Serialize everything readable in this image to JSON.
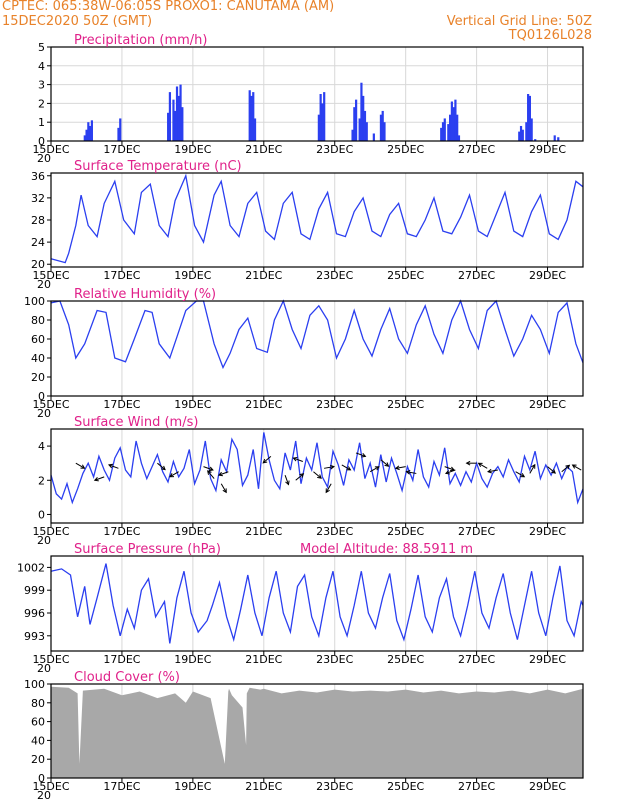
{
  "header": {
    "line1": "CPTEC:   065:38W-06:05S   PROXO1: CANUTAMA (AM)",
    "line2": "15DEC2020 50Z (GMT)",
    "grid_note": "Vertical Grid Line: 50Z",
    "code": "TQ0126L028"
  },
  "colors": {
    "header": "#e8822a",
    "title": "#e0218a",
    "series": "#2b3ff0",
    "cloud": "#a8a8a8"
  },
  "x_tick_labels": [
    "15DEC",
    "17DEC",
    "19DEC",
    "21DEC",
    "23DEC",
    "25DEC",
    "27DEC",
    "29DEC"
  ],
  "x_tick_days": [
    0,
    2,
    4,
    6,
    8,
    10,
    12,
    14
  ],
  "x_stub": "20",
  "chart_data": [
    {
      "id": "precip",
      "type": "bar",
      "title": "Precipitation (mm/h)",
      "xlim": [
        0,
        15
      ],
      "ylim": [
        0,
        5
      ],
      "yticks": [
        0,
        1,
        2,
        3,
        4,
        5
      ],
      "grid": true,
      "x": [
        0.95,
        1.0,
        1.05,
        1.1,
        1.15,
        1.9,
        1.95,
        3.3,
        3.35,
        3.45,
        3.5,
        3.55,
        3.6,
        3.65,
        3.7,
        5.6,
        5.65,
        5.7,
        5.75,
        7.55,
        7.6,
        7.65,
        7.7,
        8.5,
        8.55,
        8.6,
        8.7,
        8.75,
        8.8,
        8.85,
        8.9,
        9.1,
        9.3,
        9.35,
        9.4,
        11.0,
        11.05,
        11.1,
        11.2,
        11.25,
        11.3,
        11.35,
        11.4,
        11.45,
        11.5,
        13.2,
        13.25,
        13.3,
        13.4,
        13.45,
        13.5,
        13.55,
        13.65,
        14.2,
        14.3
      ],
      "values": [
        0.3,
        0.6,
        1.0,
        0.8,
        1.1,
        0.7,
        1.2,
        1.5,
        2.6,
        2.2,
        1.6,
        2.9,
        2.4,
        3.0,
        1.8,
        2.7,
        2.4,
        2.6,
        1.2,
        1.4,
        2.5,
        2.0,
        2.6,
        0.6,
        1.8,
        2.2,
        1.2,
        3.1,
        2.4,
        1.6,
        1.0,
        0.4,
        1.4,
        1.6,
        1.0,
        0.7,
        1.0,
        1.2,
        0.9,
        1.4,
        2.1,
        1.8,
        2.2,
        1.4,
        0.3,
        0.5,
        0.8,
        0.6,
        1.0,
        2.5,
        2.4,
        1.2,
        0.1,
        0.3,
        0.2
      ]
    },
    {
      "id": "temp",
      "type": "line",
      "title": "Surface Temperature (nC)",
      "xlim": [
        0,
        15
      ],
      "ylim": [
        19.5,
        36.5
      ],
      "yticks": [
        20,
        24,
        28,
        32,
        36
      ],
      "x": [
        0,
        0.4,
        0.5,
        0.7,
        0.85,
        1.05,
        1.3,
        1.5,
        1.8,
        2.05,
        2.35,
        2.55,
        2.8,
        3.05,
        3.3,
        3.5,
        3.8,
        4.05,
        4.3,
        4.6,
        4.8,
        5.05,
        5.3,
        5.55,
        5.8,
        6.05,
        6.3,
        6.55,
        6.8,
        7.05,
        7.3,
        7.55,
        7.8,
        8.05,
        8.3,
        8.55,
        8.8,
        9.05,
        9.3,
        9.55,
        9.8,
        10.05,
        10.3,
        10.55,
        10.8,
        11.05,
        11.3,
        11.55,
        11.8,
        12.05,
        12.3,
        12.55,
        12.8,
        13.05,
        13.3,
        13.55,
        13.8,
        14.05,
        14.3,
        14.55,
        14.8,
        15
      ],
      "values": [
        21,
        20.3,
        22,
        27,
        32.5,
        27,
        25,
        31,
        35,
        28,
        25.5,
        33,
        34.5,
        27,
        25,
        31.5,
        36,
        27,
        24,
        32.5,
        35,
        27,
        25,
        31,
        33,
        26,
        24.5,
        31,
        33,
        25.5,
        24.5,
        30,
        33,
        25.5,
        25,
        29.5,
        32,
        26,
        25,
        29,
        31,
        25.5,
        25,
        28,
        32,
        26,
        25.5,
        28.5,
        32.5,
        26,
        25,
        29,
        33,
        26,
        25,
        29.5,
        32.5,
        25.5,
        24.5,
        28,
        35,
        34
      ]
    },
    {
      "id": "rh",
      "type": "line",
      "title": "Relative Humidity (%)",
      "xlim": [
        0,
        15
      ],
      "ylim": [
        0,
        100
      ],
      "yticks": [
        0,
        20,
        40,
        60,
        80,
        100
      ],
      "x": [
        0,
        0.25,
        0.5,
        0.7,
        0.95,
        1.3,
        1.55,
        1.8,
        2.1,
        2.35,
        2.65,
        2.85,
        3.05,
        3.35,
        3.55,
        3.8,
        4.1,
        4.3,
        4.6,
        4.85,
        5.05,
        5.3,
        5.55,
        5.8,
        6.1,
        6.3,
        6.55,
        6.8,
        7.05,
        7.3,
        7.55,
        7.8,
        8.05,
        8.3,
        8.55,
        8.8,
        9.05,
        9.3,
        9.55,
        9.8,
        10.05,
        10.3,
        10.55,
        10.8,
        11.05,
        11.3,
        11.55,
        11.8,
        12.05,
        12.3,
        12.55,
        12.8,
        13.05,
        13.3,
        13.55,
        13.8,
        14.05,
        14.3,
        14.55,
        14.8,
        15
      ],
      "values": [
        98,
        100,
        75,
        40,
        55,
        90,
        88,
        40,
        36,
        60,
        90,
        88,
        55,
        40,
        62,
        90,
        100,
        100,
        55,
        30,
        45,
        70,
        82,
        50,
        46,
        80,
        100,
        70,
        50,
        85,
        95,
        80,
        40,
        60,
        90,
        60,
        42,
        70,
        92,
        60,
        45,
        75,
        95,
        65,
        45,
        80,
        100,
        70,
        50,
        90,
        100,
        70,
        42,
        60,
        85,
        70,
        45,
        88,
        98,
        55,
        35
      ]
    },
    {
      "id": "wind",
      "type": "line",
      "title": "Surface Wind (m/s)",
      "xlim": [
        0,
        15
      ],
      "ylim": [
        -0.5,
        5
      ],
      "yticks": [
        0,
        2,
        4
      ],
      "x": [
        0,
        0.15,
        0.3,
        0.45,
        0.6,
        0.75,
        0.9,
        1.05,
        1.2,
        1.35,
        1.5,
        1.65,
        1.8,
        1.95,
        2.1,
        2.25,
        2.4,
        2.55,
        2.7,
        2.85,
        3.0,
        3.15,
        3.3,
        3.45,
        3.6,
        3.75,
        3.9,
        4.05,
        4.2,
        4.35,
        4.5,
        4.65,
        4.8,
        4.95,
        5.1,
        5.25,
        5.4,
        5.55,
        5.7,
        5.85,
        6.0,
        6.15,
        6.3,
        6.45,
        6.6,
        6.75,
        6.9,
        7.05,
        7.2,
        7.35,
        7.5,
        7.65,
        7.8,
        7.95,
        8.1,
        8.25,
        8.4,
        8.55,
        8.7,
        8.85,
        9.0,
        9.15,
        9.3,
        9.45,
        9.6,
        9.75,
        9.9,
        10.05,
        10.2,
        10.35,
        10.5,
        10.65,
        10.8,
        10.95,
        11.1,
        11.25,
        11.4,
        11.55,
        11.7,
        11.85,
        12.0,
        12.15,
        12.3,
        12.45,
        12.6,
        12.75,
        12.9,
        13.05,
        13.2,
        13.35,
        13.5,
        13.65,
        13.8,
        13.95,
        14.1,
        14.25,
        14.4,
        14.55,
        14.7,
        14.85,
        15
      ],
      "values": [
        2.3,
        1.2,
        0.9,
        1.8,
        0.7,
        1.5,
        2.4,
        3.0,
        2.2,
        3.4,
        2.6,
        2.0,
        3.3,
        3.9,
        2.6,
        2.2,
        4.3,
        3.0,
        2.1,
        2.8,
        3.5,
        2.5,
        1.9,
        3.1,
        2.2,
        2.7,
        3.8,
        1.8,
        2.6,
        4.3,
        2.1,
        1.4,
        3.2,
        2.5,
        4.4,
        3.8,
        1.7,
        2.3,
        3.8,
        1.5,
        4.8,
        3.2,
        2.0,
        1.5,
        3.6,
        2.6,
        4.3,
        1.8,
        3.3,
        2.6,
        4.2,
        2.2,
        1.6,
        3.7,
        2.9,
        1.7,
        3.2,
        2.6,
        4.2,
        2.1,
        3.0,
        1.6,
        3.5,
        1.9,
        3.3,
        2.4,
        1.4,
        2.8,
        2.0,
        3.8,
        2.2,
        1.6,
        3.1,
        2.3,
        3.9,
        1.8,
        2.4,
        1.7,
        2.5,
        1.9,
        3.0,
        2.1,
        1.6,
        2.4,
        2.8,
        2.2,
        3.2,
        2.5,
        1.9,
        3.4,
        2.6,
        3.7,
        2.1,
        2.9,
        2.3,
        3.0,
        2.1,
        2.8,
        2.5,
        0.7,
        1.5
      ]
    },
    {
      "id": "press",
      "type": "line",
      "title": "Surface Pressure (hPa)",
      "note": "Model Altitude: 88.5911 m",
      "xlim": [
        0,
        15
      ],
      "ylim": [
        991,
        1003.5
      ],
      "yticks": [
        993,
        996,
        999,
        1002
      ],
      "x": [
        0,
        0.3,
        0.55,
        0.75,
        0.95,
        1.1,
        1.3,
        1.55,
        1.75,
        1.95,
        2.15,
        2.35,
        2.55,
        2.75,
        2.95,
        3.2,
        3.35,
        3.55,
        3.75,
        3.95,
        4.15,
        4.4,
        4.55,
        4.75,
        4.95,
        5.15,
        5.35,
        5.55,
        5.75,
        5.95,
        6.15,
        6.35,
        6.55,
        6.75,
        6.95,
        7.15,
        7.35,
        7.55,
        7.75,
        7.95,
        8.15,
        8.35,
        8.55,
        8.75,
        8.95,
        9.15,
        9.35,
        9.55,
        9.75,
        9.95,
        10.15,
        10.35,
        10.55,
        10.75,
        10.95,
        11.15,
        11.35,
        11.55,
        11.75,
        11.95,
        12.15,
        12.35,
        12.55,
        12.75,
        12.95,
        13.15,
        13.35,
        13.55,
        13.75,
        13.95,
        14.15,
        14.35,
        14.55,
        14.75,
        14.95,
        15
      ],
      "values": [
        1001.5,
        1001.8,
        1001,
        995.5,
        999.5,
        994.5,
        998,
        1002.5,
        997,
        993,
        996.5,
        994,
        999,
        1000.5,
        995.5,
        997.5,
        992,
        998,
        1001.5,
        996,
        993.5,
        995,
        997,
        1000,
        995.5,
        992.5,
        996.5,
        1001,
        996,
        993,
        998,
        1001.5,
        996,
        993.5,
        999.5,
        1001,
        995.5,
        993,
        998,
        1001.5,
        995.5,
        993,
        997,
        1001.5,
        996,
        994,
        998,
        1001.2,
        995,
        992.5,
        996.5,
        1001,
        995.5,
        993.5,
        998,
        1000.5,
        995.5,
        993,
        997,
        1001.5,
        996,
        994,
        998,
        1001.2,
        996,
        992.5,
        997,
        1001.5,
        996,
        993,
        998,
        1002.2,
        995,
        993,
        997.5,
        997
      ]
    },
    {
      "id": "cloud",
      "type": "area",
      "title": "Cloud Cover (%)",
      "xlim": [
        0,
        15
      ],
      "ylim": [
        0,
        100
      ],
      "yticks": [
        0,
        20,
        40,
        60,
        80,
        100
      ],
      "x": [
        0,
        0.5,
        0.75,
        0.8,
        0.9,
        1.5,
        2,
        2.5,
        3,
        3.5,
        3.8,
        4,
        4.5,
        4.9,
        5,
        5.02,
        5.1,
        5.4,
        5.5,
        5.52,
        5.6,
        5.9,
        6,
        6.5,
        7,
        7.5,
        8,
        8.5,
        9,
        9.5,
        10,
        10.5,
        11,
        11.5,
        12,
        12.5,
        13,
        13.5,
        14,
        14.5,
        15
      ],
      "values": [
        97,
        96,
        90,
        15,
        93,
        95,
        88,
        92,
        85,
        90,
        80,
        92,
        85,
        15,
        92,
        95,
        88,
        75,
        35,
        90,
        96,
        94,
        95,
        90,
        93,
        91,
        94,
        92,
        93,
        92,
        94,
        91,
        93,
        90,
        92,
        91,
        93,
        90,
        94,
        90,
        95
      ]
    }
  ]
}
